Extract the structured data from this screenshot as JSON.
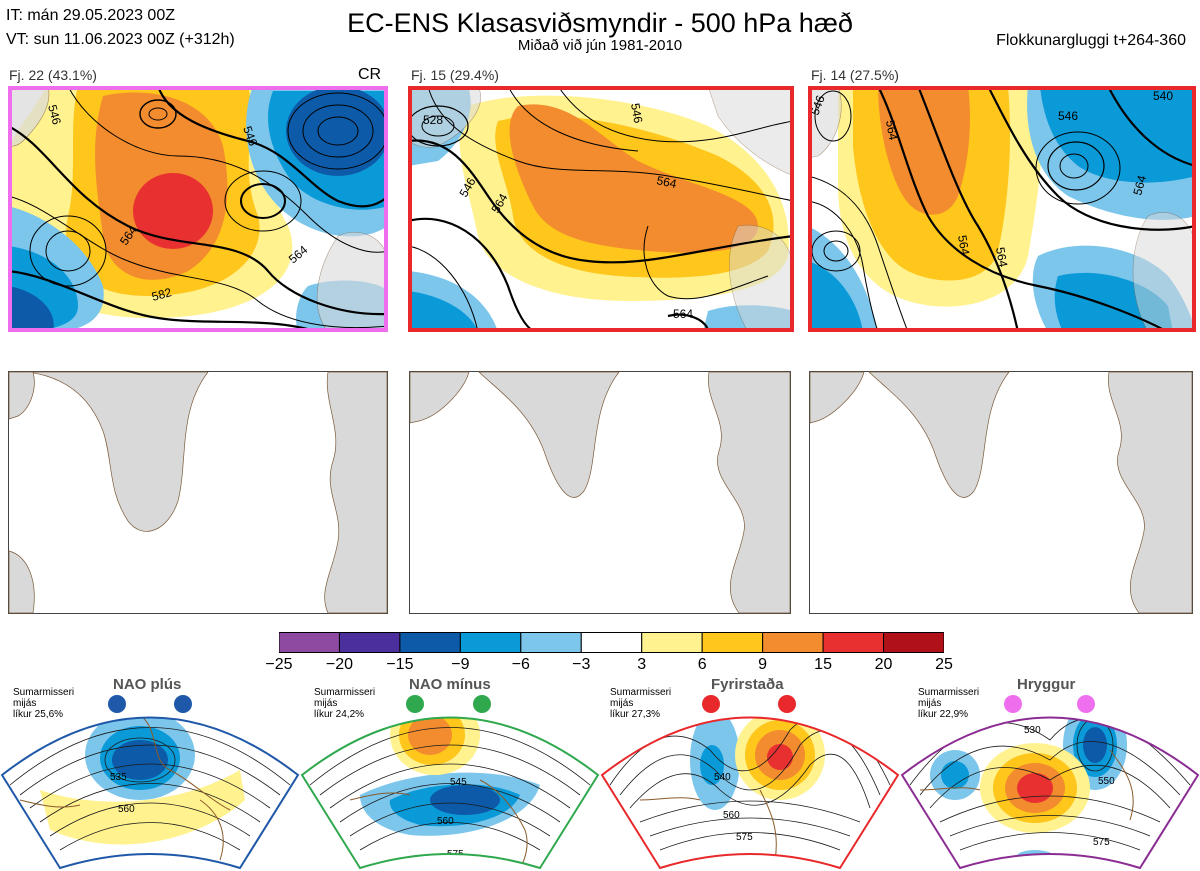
{
  "header": {
    "init_time": "IT: mán 29.05.2023 00Z",
    "valid_time": "VT: sun 11.06.2023 00Z  (+312h)",
    "title": "EC-ENS Klasasviðsmyndir - 500 hPa hæð",
    "subtitle": "Miðað við jún 1981-2010",
    "window": "Flokkunargluggi t+264-360"
  },
  "clusters": [
    {
      "label": "Fj. 22 (43.1%)",
      "tag": "CR",
      "border_color": "#ee6eee",
      "members": 22,
      "percent": 43.1
    },
    {
      "label": "Fj. 15 (29.4%)",
      "tag": "",
      "border_color": "#e8282a",
      "members": 15,
      "percent": 29.4
    },
    {
      "label": "Fj. 14 (27.5%)",
      "tag": "",
      "border_color": "#e8282a",
      "members": 14,
      "percent": 27.5
    }
  ],
  "colors": {
    "land": "#d9d9d9",
    "coast": "#7a5a3a",
    "contour": "#000000"
  },
  "chart_data": [
    {
      "type": "heatmap",
      "title": "EC-ENS Klasasviðsmyndir - 500 hPa hæð",
      "colorbar": {
        "ticks": [
          -25,
          -20,
          -15,
          -9,
          -6,
          -3,
          3,
          6,
          9,
          15,
          20,
          25
        ],
        "tick_labels": [
          "−25",
          "−20",
          "−15",
          "−9",
          "−6",
          "−3",
          "3",
          "6",
          "9",
          "15",
          "20",
          "25"
        ],
        "colors": [
          "#8d4aa0",
          "#4b2f9c",
          "#0d5ba8",
          "#0b9ad8",
          "#7cc6ec",
          "#ffffff",
          "#fff28f",
          "#ffc61b",
          "#f28c2e",
          "#e93030",
          "#b01018"
        ]
      },
      "contour_labels": {
        "cluster_1": [
          "546",
          "546",
          "564",
          "564",
          "582"
        ],
        "cluster_2": [
          "528",
          "546",
          "546",
          "564",
          "564",
          "564"
        ],
        "cluster_3": [
          "546",
          "540",
          "546",
          "564",
          "564",
          "564",
          "564"
        ]
      }
    }
  ],
  "regimes": [
    {
      "name": "NAO plús",
      "note": [
        "Sumarmisseri",
        "mijás",
        "líkur 25,6%"
      ],
      "dot_color": "#1f58a8",
      "border_color": "#1f58a8",
      "contours": [
        "535",
        "560"
      ]
    },
    {
      "name": "NAO mínus",
      "note": [
        "Sumarmisseri",
        "mijás",
        "líkur 24,2%"
      ],
      "dot_color": "#2fa84e",
      "border_color": "#2fa84e",
      "contours": [
        "545",
        "560",
        "575"
      ]
    },
    {
      "name": "Fyrirstaða",
      "note": [
        "Sumarmisseri",
        "mijás",
        "líkur 27,3%"
      ],
      "dot_color": "#e8282a",
      "border_color": "#e8282a",
      "contours": [
        "540",
        "560",
        "575"
      ]
    },
    {
      "name": "Hryggur",
      "note": [
        "Sumarmisseri",
        "mijás",
        "líkur 22,9%"
      ],
      "dot_color": "#ee6eee",
      "border_color": "#8b2c92",
      "contours": [
        "530",
        "550",
        "575"
      ]
    }
  ]
}
